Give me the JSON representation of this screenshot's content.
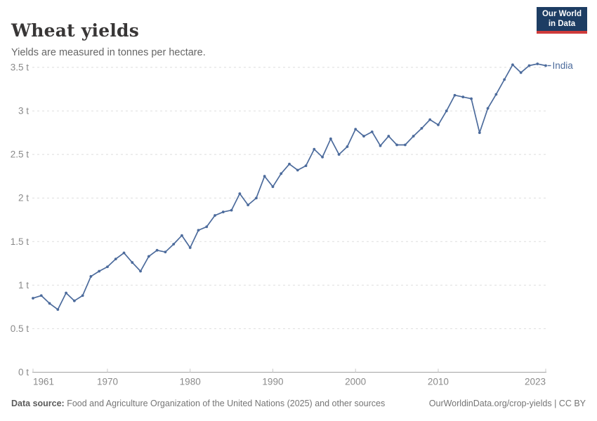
{
  "header": {
    "title": "Wheat yields",
    "subtitle": "Yields are measured in tonnes per hectare.",
    "logo": {
      "line1": "Our World",
      "line2": "in Data"
    }
  },
  "footer": {
    "source_label": "Data source:",
    "source_text": " Food and Agriculture Organization of the United Nations (2025) and other sources",
    "citation": "OurWorldinData.org/crop-yields | CC BY"
  },
  "colors": {
    "line": "#4C6B9C",
    "title_text": "#383636",
    "subtitle_text": "#666666",
    "axis_text": "#8a8a8a",
    "grid": "#dedede",
    "axis_line": "#a3a3a3",
    "tick_mark": "#c8c8c8",
    "logo_bg": "#1d3d63",
    "logo_accent": "#cf3b3b"
  },
  "chart_data": {
    "type": "line",
    "title": "Wheat yields",
    "subtitle": "Yields are measured in tonnes per hectare.",
    "xlim": [
      1961,
      2023
    ],
    "ylim": [
      0,
      3.5
    ],
    "grid": "horizontal-dashed",
    "legend": "end-of-line-label",
    "x_ticks": [
      1961,
      1970,
      1980,
      1990,
      2000,
      2010,
      2023
    ],
    "y_ticks": [
      {
        "value": 0,
        "label": "0 t"
      },
      {
        "value": 0.5,
        "label": "0.5 t"
      },
      {
        "value": 1,
        "label": "1 t"
      },
      {
        "value": 1.5,
        "label": "1.5 t"
      },
      {
        "value": 2,
        "label": "2 t"
      },
      {
        "value": 2.5,
        "label": "2.5 t"
      },
      {
        "value": 3,
        "label": "3 t"
      },
      {
        "value": 3.5,
        "label": "3.5 t"
      }
    ],
    "series": [
      {
        "name": "India",
        "x": [
          1961,
          1962,
          1963,
          1964,
          1965,
          1966,
          1967,
          1968,
          1969,
          1970,
          1971,
          1972,
          1973,
          1974,
          1975,
          1976,
          1977,
          1978,
          1979,
          1980,
          1981,
          1982,
          1983,
          1984,
          1985,
          1986,
          1987,
          1988,
          1989,
          1990,
          1991,
          1992,
          1993,
          1994,
          1995,
          1996,
          1997,
          1998,
          1999,
          2000,
          2001,
          2002,
          2003,
          2004,
          2005,
          2006,
          2007,
          2008,
          2009,
          2010,
          2011,
          2012,
          2013,
          2014,
          2015,
          2016,
          2017,
          2018,
          2019,
          2020,
          2021,
          2022,
          2023
        ],
        "values": [
          0.85,
          0.88,
          0.79,
          0.72,
          0.91,
          0.82,
          0.88,
          1.1,
          1.16,
          1.21,
          1.3,
          1.37,
          1.26,
          1.16,
          1.33,
          1.4,
          1.38,
          1.47,
          1.57,
          1.43,
          1.63,
          1.67,
          1.8,
          1.84,
          1.86,
          2.05,
          1.92,
          2.0,
          2.25,
          2.13,
          2.28,
          2.39,
          2.32,
          2.37,
          2.56,
          2.47,
          2.68,
          2.5,
          2.59,
          2.79,
          2.71,
          2.76,
          2.6,
          2.71,
          2.61,
          2.61,
          2.71,
          2.8,
          2.9,
          2.84,
          3.0,
          3.18,
          3.16,
          3.14,
          2.75,
          3.03,
          3.19,
          3.36,
          3.53,
          3.44,
          3.52,
          3.54,
          3.52
        ]
      }
    ]
  }
}
